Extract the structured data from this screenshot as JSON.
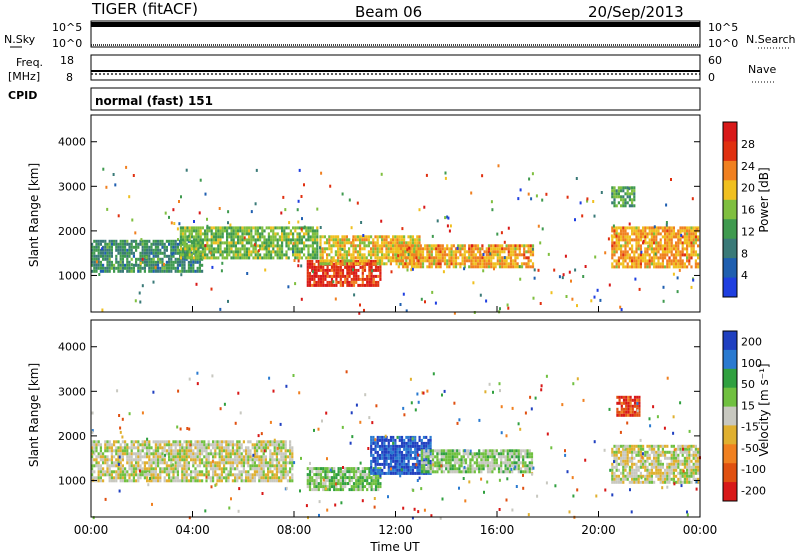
{
  "header": {
    "station": "TIGER (fitACF)",
    "beam": "Beam 06",
    "date": "20/Sep/2013"
  },
  "noise_panel": {
    "left_label": "N.Sky",
    "right_label": "N.Search",
    "ticks": [
      "10^5",
      "10^0"
    ]
  },
  "freq_panel": {
    "left_label_1": "Freq.",
    "left_label_2": "[MHz]",
    "left_ticks": [
      "18",
      "8"
    ],
    "right_label": "Nave",
    "right_ticks": [
      "60",
      "0"
    ]
  },
  "cpid_panel": {
    "label": "CPID",
    "mode": "normal (fast) 151"
  },
  "colors": {
    "power_scale": [
      "#1f3fe0",
      "#1f5fb0",
      "#3a7a78",
      "#3f9a4f",
      "#7fbf3f",
      "#f0c020",
      "#f08020",
      "#e03010",
      "#d81818"
    ],
    "velocity_scale": [
      "#2040c0",
      "#2a7ad0",
      "#30a040",
      "#70c040",
      "#c8c8c0",
      "#e0b030",
      "#f08020",
      "#e05010",
      "#d81818"
    ]
  },
  "chart_data": [
    {
      "type": "heatmap",
      "name": "power",
      "ylabel": "Slant Range [km]",
      "xlabel": "",
      "x_ticks": [
        "00:00",
        "04:00",
        "08:00",
        "12:00",
        "16:00",
        "20:00",
        "00:00"
      ],
      "y_ticks": [
        "1000",
        "2000",
        "3000",
        "4000"
      ],
      "xlim_hours": [
        0,
        24
      ],
      "ylim_km": [
        180,
        4600
      ],
      "colorbar": {
        "label": "Power [dB]",
        "ticks": [
          "4",
          "8",
          "12",
          "16",
          "20",
          "24",
          "28"
        ],
        "range": [
          0,
          30
        ]
      },
      "regions": [
        {
          "t0": 0.0,
          "t1": 4.5,
          "r0": 1000,
          "r1": 1800,
          "v": 10
        },
        {
          "t0": 3.5,
          "t1": 9.0,
          "r0": 1350,
          "r1": 2100,
          "v": 14
        },
        {
          "t0": 8.5,
          "t1": 11.5,
          "r0": 700,
          "r1": 1350,
          "v": 26
        },
        {
          "t0": 9.0,
          "t1": 13.0,
          "r0": 1200,
          "r1": 1900,
          "v": 18
        },
        {
          "t0": 12.0,
          "t1": 17.5,
          "r0": 1100,
          "r1": 1700,
          "v": 20
        },
        {
          "t0": 20.5,
          "t1": 24.0,
          "r0": 1100,
          "r1": 2100,
          "v": 20
        },
        {
          "t0": 20.5,
          "t1": 21.5,
          "r0": 2500,
          "r1": 3000,
          "v": 12
        }
      ]
    },
    {
      "type": "heatmap",
      "name": "velocity",
      "ylabel": "Slant Range [km]",
      "xlabel": "Time UT",
      "x_ticks": [
        "00:00",
        "04:00",
        "08:00",
        "12:00",
        "16:00",
        "20:00",
        "00:00"
      ],
      "y_ticks": [
        "1000",
        "2000",
        "3000",
        "4000"
      ],
      "xlim_hours": [
        0,
        24
      ],
      "ylim_km": [
        180,
        4600
      ],
      "colorbar": {
        "label": "Velocity [m s⁻¹]",
        "ticks": [
          "200",
          "100",
          "50",
          "15",
          "-15",
          "-50",
          "-100",
          "-200"
        ],
        "range": [
          -250,
          250
        ]
      },
      "regions": [
        {
          "t0": 0.0,
          "t1": 8.0,
          "r0": 900,
          "r1": 1900,
          "v": 0
        },
        {
          "t0": 8.5,
          "t1": 11.5,
          "r0": 700,
          "r1": 1300,
          "v": 60
        },
        {
          "t0": 11.0,
          "t1": 13.5,
          "r0": 1100,
          "r1": 2000,
          "v": 200
        },
        {
          "t0": 13.0,
          "t1": 17.5,
          "r0": 1100,
          "r1": 1700,
          "v": 40
        },
        {
          "t0": 20.5,
          "t1": 24.0,
          "r0": 900,
          "r1": 1800,
          "v": 0
        },
        {
          "t0": 20.7,
          "t1": 21.7,
          "r0": 2400,
          "r1": 2900,
          "v": -180
        }
      ]
    }
  ]
}
